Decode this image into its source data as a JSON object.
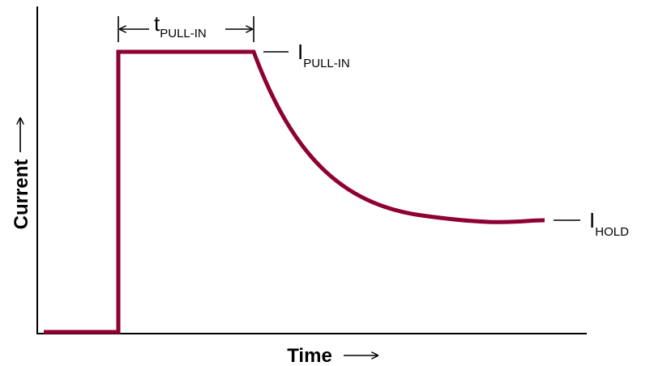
{
  "axes": {
    "x_label": "Time",
    "y_label": "Current"
  },
  "annotations": [
    {
      "symbol": "t",
      "subscript": "PULL-IN"
    },
    {
      "symbol": "I",
      "subscript": "PULL-IN"
    },
    {
      "symbol": "I",
      "subscript": "HOLD"
    }
  ]
}
